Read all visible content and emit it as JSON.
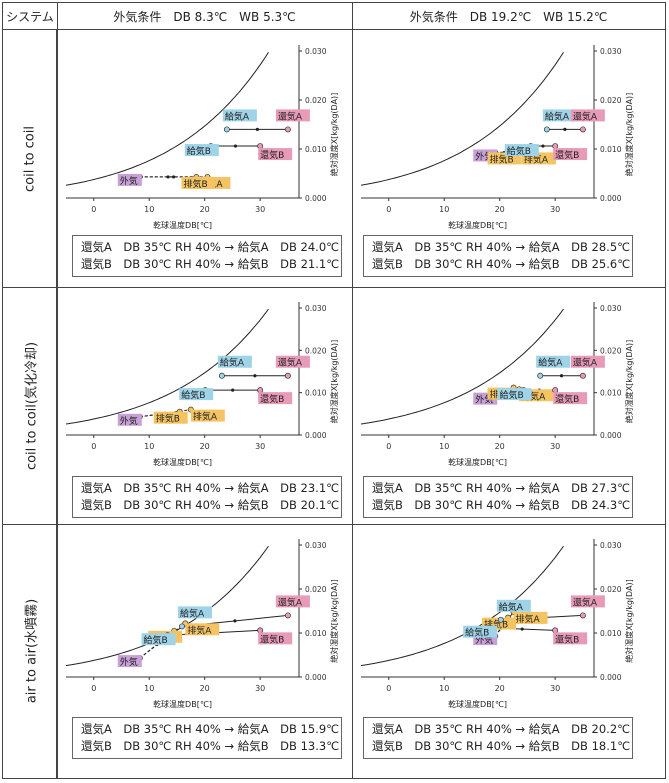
{
  "header": {
    "system": "システム",
    "cond_left": "外気条件　DB 8.3℃　WB 5.3℃",
    "cond_right": "外気条件　DB 19.2℃　WB 15.2℃"
  },
  "rows": [
    {
      "label": "coil to coil"
    },
    {
      "label": "coil to coil(気化冷却)"
    },
    {
      "label": "air to air(水噴霧)"
    }
  ],
  "chart_common": {
    "xlabel": "乾球温度DB[℃]",
    "ylabel": "絶対湿度X[kg/kg(DA)]",
    "xticks": [
      "0",
      "10",
      "20",
      "30"
    ],
    "yticks": [
      "0.000",
      "0.010",
      "0.020",
      "0.030"
    ],
    "xlim": [
      -5,
      37
    ],
    "ylim": [
      0,
      0.03
    ]
  },
  "chart_data": [
    {
      "type": "scatter",
      "row": "coil to coil",
      "condition": "DB 8.3℃ WB 5.3℃",
      "points": [
        {
          "label": "外気",
          "x": 8.3,
          "y": 0.0043,
          "color": "#c8a0d8"
        },
        {
          "label": "排気A",
          "x": 18.5,
          "y": 0.0043,
          "color": "#f5c462"
        },
        {
          "label": "排気B",
          "x": 20.5,
          "y": 0.0043,
          "color": "#f5c462"
        },
        {
          "label": "給気A",
          "x": 24.0,
          "y": 0.014,
          "color": "#9fd3e8"
        },
        {
          "label": "還気A",
          "x": 35.0,
          "y": 0.014,
          "color": "#e89ab9"
        },
        {
          "label": "給気B",
          "x": 21.1,
          "y": 0.0106,
          "color": "#9fd3e8"
        },
        {
          "label": "還気B",
          "x": 30.0,
          "y": 0.0106,
          "color": "#e89ab9"
        }
      ],
      "results": [
        "還気A　DB 35℃ RH 40% → 給気A　DB 24.0℃",
        "還気B　DB 30℃ RH 40% → 給気B　DB 21.1℃"
      ]
    },
    {
      "type": "scatter",
      "row": "coil to coil",
      "condition": "DB 19.2℃ WB 15.2℃",
      "points": [
        {
          "label": "外気",
          "x": 19.2,
          "y": 0.0093,
          "color": "#c8a0d8"
        },
        {
          "label": "排気B",
          "x": 22.5,
          "y": 0.0093,
          "color": "#f5c462"
        },
        {
          "label": "排気A",
          "x": 24.0,
          "y": 0.0093,
          "color": "#f5c462"
        },
        {
          "label": "給気A",
          "x": 28.5,
          "y": 0.014,
          "color": "#9fd3e8"
        },
        {
          "label": "還気A",
          "x": 35.0,
          "y": 0.014,
          "color": "#e89ab9"
        },
        {
          "label": "給気B",
          "x": 25.6,
          "y": 0.0106,
          "color": "#9fd3e8"
        },
        {
          "label": "還気B",
          "x": 30.0,
          "y": 0.0106,
          "color": "#e89ab9"
        }
      ],
      "results": [
        "還気A　DB 35℃ RH 40% → 給気A　DB 28.5℃",
        "還気B　DB 30℃ RH 40% → 給気B　DB 25.6℃"
      ]
    },
    {
      "type": "scatter",
      "row": "coil to coil(気化冷却)",
      "condition": "DB 8.3℃ WB 5.3℃",
      "points": [
        {
          "label": "外気",
          "x": 8.3,
          "y": 0.0043,
          "color": "#c8a0d8"
        },
        {
          "label": "排気B",
          "x": 15.5,
          "y": 0.0055,
          "color": "#f5c462"
        },
        {
          "label": "排気A",
          "x": 17.5,
          "y": 0.006,
          "color": "#f5c462"
        },
        {
          "label": "給気A",
          "x": 23.1,
          "y": 0.014,
          "color": "#9fd3e8"
        },
        {
          "label": "還気A",
          "x": 35.0,
          "y": 0.014,
          "color": "#e89ab9"
        },
        {
          "label": "給気B",
          "x": 20.1,
          "y": 0.0106,
          "color": "#9fd3e8"
        },
        {
          "label": "還気B",
          "x": 30.0,
          "y": 0.0106,
          "color": "#e89ab9"
        }
      ],
      "results": [
        "還気A　DB 35℃ RH 40% → 給気A　DB 23.1℃",
        "還気B　DB 30℃ RH 40% → 給気B　DB 20.1℃"
      ]
    },
    {
      "type": "scatter",
      "row": "coil to coil(気化冷却)",
      "condition": "DB 19.2℃ WB 15.2℃",
      "points": [
        {
          "label": "外気",
          "x": 19.2,
          "y": 0.0093,
          "color": "#c8a0d8"
        },
        {
          "label": "排気B",
          "x": 22.5,
          "y": 0.0112,
          "color": "#f5c462"
        },
        {
          "label": "排気A",
          "x": 23.5,
          "y": 0.0108,
          "color": "#f5c462"
        },
        {
          "label": "給気A",
          "x": 27.3,
          "y": 0.014,
          "color": "#9fd3e8"
        },
        {
          "label": "還気A",
          "x": 35.0,
          "y": 0.014,
          "color": "#e89ab9"
        },
        {
          "label": "給気B",
          "x": 24.3,
          "y": 0.0106,
          "color": "#9fd3e8"
        },
        {
          "label": "還気B",
          "x": 30.0,
          "y": 0.0106,
          "color": "#e89ab9"
        }
      ],
      "results": [
        "還気A　DB 35℃ RH 40% → 給気A　DB 27.3℃",
        "還気B　DB 30℃ RH 40% → 給気B　DB 24.3℃"
      ]
    },
    {
      "type": "scatter",
      "row": "air to air(水噴霧)",
      "condition": "DB 8.3℃ WB 5.3℃",
      "points": [
        {
          "label": "外気",
          "x": 8.3,
          "y": 0.0043,
          "color": "#c8a0d8"
        },
        {
          "label": "排気A",
          "x": 16.5,
          "y": 0.0122,
          "color": "#f5c462"
        },
        {
          "label": "排気B",
          "x": 14.5,
          "y": 0.0105,
          "color": "#f5c462"
        },
        {
          "label": "給気A",
          "x": 15.9,
          "y": 0.0115,
          "color": "#9fd3e8"
        },
        {
          "label": "還気A",
          "x": 35.0,
          "y": 0.014,
          "color": "#e89ab9"
        },
        {
          "label": "給気B",
          "x": 13.3,
          "y": 0.0095,
          "color": "#9fd3e8"
        },
        {
          "label": "還気B",
          "x": 30.0,
          "y": 0.0106,
          "color": "#e89ab9"
        }
      ],
      "results": [
        "還気A　DB 35℃ RH 40% → 給気A　DB 15.9℃",
        "還気B　DB 30℃ RH 40% → 給気B　DB 13.3℃"
      ]
    },
    {
      "type": "scatter",
      "row": "air to air(水噴霧)",
      "condition": "DB 19.2℃ WB 15.2℃",
      "points": [
        {
          "label": "外気",
          "x": 19.2,
          "y": 0.0093,
          "color": "#c8a0d8"
        },
        {
          "label": "排気A",
          "x": 22.5,
          "y": 0.0148,
          "color": "#f5c462"
        },
        {
          "label": "排気B",
          "x": 21.5,
          "y": 0.0135,
          "color": "#f5c462"
        },
        {
          "label": "給気A",
          "x": 20.2,
          "y": 0.013,
          "color": "#9fd3e8"
        },
        {
          "label": "還気A",
          "x": 35.0,
          "y": 0.014,
          "color": "#e89ab9"
        },
        {
          "label": "給気B",
          "x": 18.1,
          "y": 0.0112,
          "color": "#9fd3e8"
        },
        {
          "label": "還気B",
          "x": 30.0,
          "y": 0.0106,
          "color": "#e89ab9"
        }
      ],
      "results": [
        "還気A　DB 35℃ RH 40% → 給気A　DB 20.2℃",
        "還気B　DB 30℃ RH 40% → 給気B　DB 18.1℃"
      ]
    }
  ]
}
